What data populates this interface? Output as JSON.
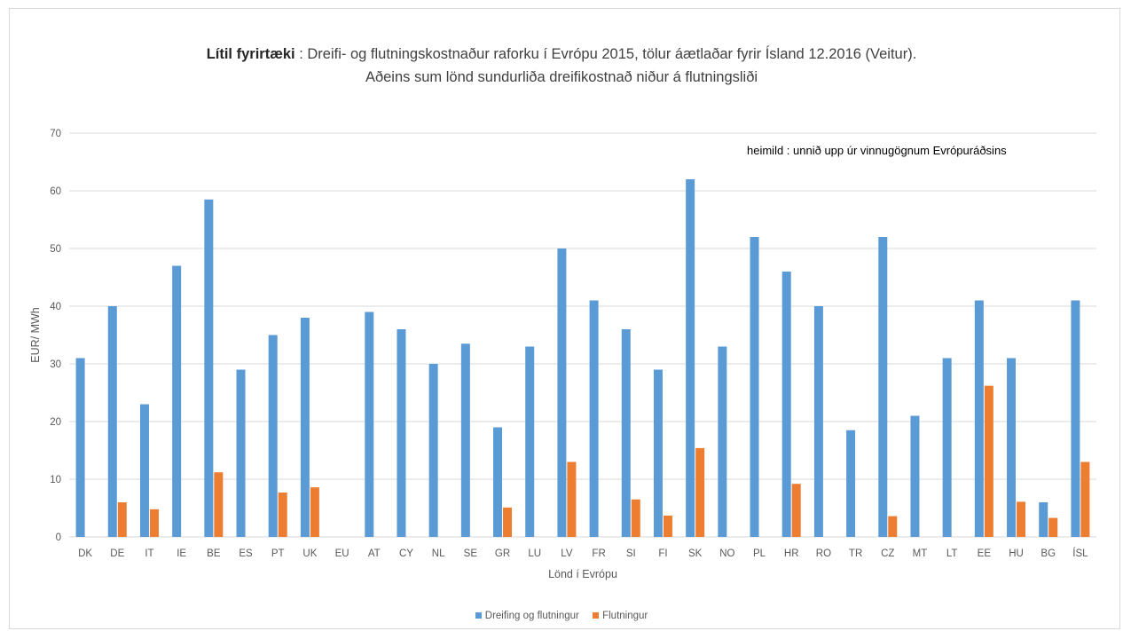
{
  "title": {
    "bold": "Lítil fyrirtæki",
    "rest": " : Dreifi- og flutningskostnaður raforku í Evrópu 2015, tölur áætlaðar fyrir Ísland 12.2016 (Veitur).",
    "line2": "Aðeins sum lönd sundurliða dreifikostnað niður á flutningsliði"
  },
  "source_note": "heimild : unnið upp úr vinnugögnum Evrópuráðsins",
  "colors": {
    "series1": "#5b9bd5",
    "series2": "#ed7d31",
    "grid": "#d9d9d9"
  },
  "chart_data": {
    "type": "bar",
    "title": "Lítil fyrirtæki : Dreifi- og flutningskostnaður raforku í Evrópu 2015, tölur áætlaðar fyrir Ísland 12.2016 (Veitur). Aðeins sum lönd sundurliða dreifikostnað niður á flutningsliði",
    "xlabel": "Lönd í Evrópu",
    "ylabel": "EUR/ MWh",
    "ylim": [
      0,
      70
    ],
    "yticks": [
      0,
      10,
      20,
      30,
      40,
      50,
      60,
      70
    ],
    "grid": true,
    "legend_position": "bottom",
    "categories": [
      "DK",
      "DE",
      "IT",
      "IE",
      "BE",
      "ES",
      "PT",
      "UK",
      "EU",
      "AT",
      "CY",
      "NL",
      "SE",
      "GR",
      "LU",
      "LV",
      "FR",
      "SI",
      "FI",
      "SK",
      "NO",
      "PL",
      "HR",
      "RO",
      "TR",
      "CZ",
      "MT",
      "LT",
      "EE",
      "HU",
      "BG",
      "ÍSL"
    ],
    "series": [
      {
        "name": "Dreifing og flutningur",
        "values": [
          31,
          40,
          23,
          47,
          58.5,
          29,
          35,
          38,
          null,
          39,
          36,
          30,
          33.5,
          19,
          33,
          50,
          41,
          36,
          29,
          62,
          33,
          52,
          46,
          40,
          18.5,
          52,
          21,
          31,
          41,
          31,
          6,
          41
        ]
      },
      {
        "name": "Flutningur",
        "values": [
          null,
          6,
          4.8,
          null,
          11.2,
          null,
          7.7,
          8.6,
          null,
          null,
          null,
          null,
          null,
          5.1,
          null,
          13,
          null,
          6.5,
          3.7,
          15.4,
          null,
          null,
          9.2,
          null,
          null,
          3.6,
          null,
          null,
          26.2,
          6.1,
          3.3,
          13
        ]
      }
    ]
  }
}
